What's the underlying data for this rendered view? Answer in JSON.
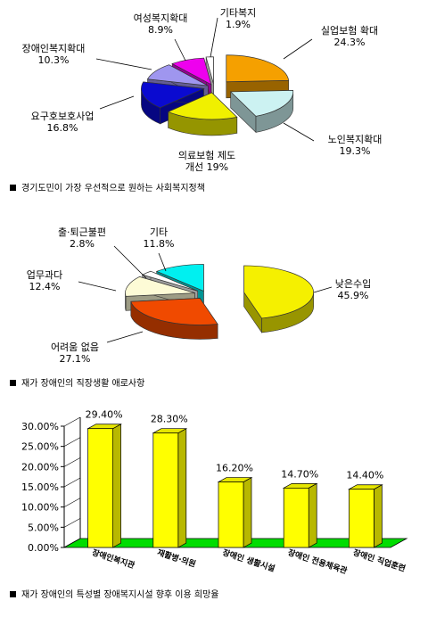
{
  "chart_data": [
    {
      "type": "pie",
      "caption": "경기도민이 가장 우선적으로 원하는 사회복지정책",
      "slices": [
        {
          "label": "실업보험 확대",
          "value": 24.3,
          "value_text": "24.3%",
          "color": "#f5a000"
        },
        {
          "label": "노인복지확대",
          "value": 19.3,
          "value_text": "19.3%",
          "color": "#ccf2f2"
        },
        {
          "label": "의료보험 제도 개선",
          "label_lines": [
            "의료보험 제도",
            "개선 19%"
          ],
          "value": 19,
          "value_text": "19%",
          "color": "#f0f000"
        },
        {
          "label": "요구호보호사업",
          "value": 16.8,
          "value_text": "16.8%",
          "color": "#0a0ad0"
        },
        {
          "label": "장애인복지확대",
          "value": 10.3,
          "value_text": "10.3%",
          "color": "#9f96ef"
        },
        {
          "label": "여성복지확대",
          "value": 8.9,
          "value_text": "8.9%",
          "color": "#ee00ee"
        },
        {
          "label": "기타복지",
          "value": 1.9,
          "value_text": "1.9%",
          "color": "#ffffff"
        }
      ]
    },
    {
      "type": "pie",
      "caption": "재가 장애인의 직장생활 애로사항",
      "slices": [
        {
          "label": "낮은수입",
          "value": 45.9,
          "value_text": "45.9%",
          "color": "#f5f000"
        },
        {
          "label": "어려움 없음",
          "value": 27.1,
          "value_text": "27.1%",
          "color": "#f04a00"
        },
        {
          "label": "업무과다",
          "value": 12.4,
          "value_text": "12.4%",
          "color": "#fdfbd6"
        },
        {
          "label": "출·퇴근불편",
          "value": 2.8,
          "value_text": "2.8%",
          "color": "#ffffff"
        },
        {
          "label": "기타",
          "value": 11.8,
          "value_text": "11.8%",
          "color": "#00f0f0"
        }
      ]
    },
    {
      "type": "bar",
      "caption": "재가 장애인의 특성별 장애복지시설 향후 이용 희망율",
      "categories": [
        "장애인복지관",
        "재활병·의원",
        "장애인 생활시설",
        "장애인 전용체육관",
        "장애인 직업훈련"
      ],
      "values": [
        29.4,
        28.3,
        16.2,
        14.7,
        14.4
      ],
      "value_labels": [
        "29.40%",
        "28.30%",
        "16.20%",
        "14.70%",
        "14.40%"
      ],
      "ylim": [
        0,
        30
      ],
      "yticks": [
        "0.00%",
        "5.00%",
        "10.00%",
        "15.00%",
        "20.00%",
        "25.00%",
        "30.00%"
      ],
      "bar_color": "#ffff00",
      "floor_color": "#00dd00"
    }
  ]
}
